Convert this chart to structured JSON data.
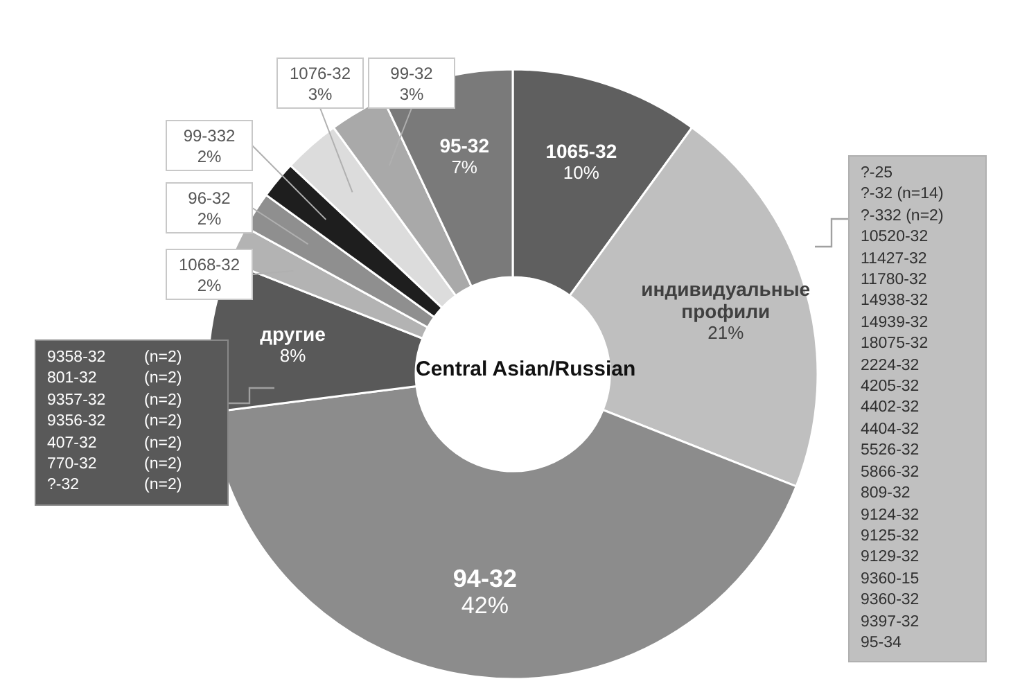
{
  "chart_data": {
    "type": "donut",
    "title": "Central Asian/Russian",
    "categories": [
      "1065-32",
      "индивидуальные профили",
      "94-32",
      "другие",
      "1068-32",
      "96-32",
      "99-332",
      "1076-32",
      "99-32",
      "95-32"
    ],
    "values": [
      10,
      21,
      42,
      8,
      2,
      2,
      2,
      3,
      3,
      7
    ],
    "value_labels": [
      "10%",
      "21%",
      "42%",
      "8%",
      "2%",
      "2%",
      "2%",
      "3%",
      "3%",
      "7%"
    ],
    "colors": [
      "#5f5f5f",
      "#bfbfbf",
      "#8c8c8c",
      "#595959",
      "#b3b3b3",
      "#8f8f8f",
      "#1e1e1e",
      "#dcdcdc",
      "#a9a9a9",
      "#7a7a7a"
    ],
    "annotations": [
      "?-25\n?-32 (n=14)\n?-332 (n=2)\n10520-32\n11427-32\n11780-32\n14938-32\n14939-32\n18075-32\n2224-32\n4205-32\n4402-32\n4404-32\n5526-32\n5866-32\n809-32\n9124-32\n9125-32\n9129-32\n9360-15\n9360-32\n9397-32\n95-34",
      "9358-32\t(n=2)\n801-32\t(n=2)\n9357-32\t(n=2)\n9356-32\t(n=2)\n407-32\t(n=2)\n770-32\t(n=2)\n?-32\t(n=2)"
    ]
  }
}
